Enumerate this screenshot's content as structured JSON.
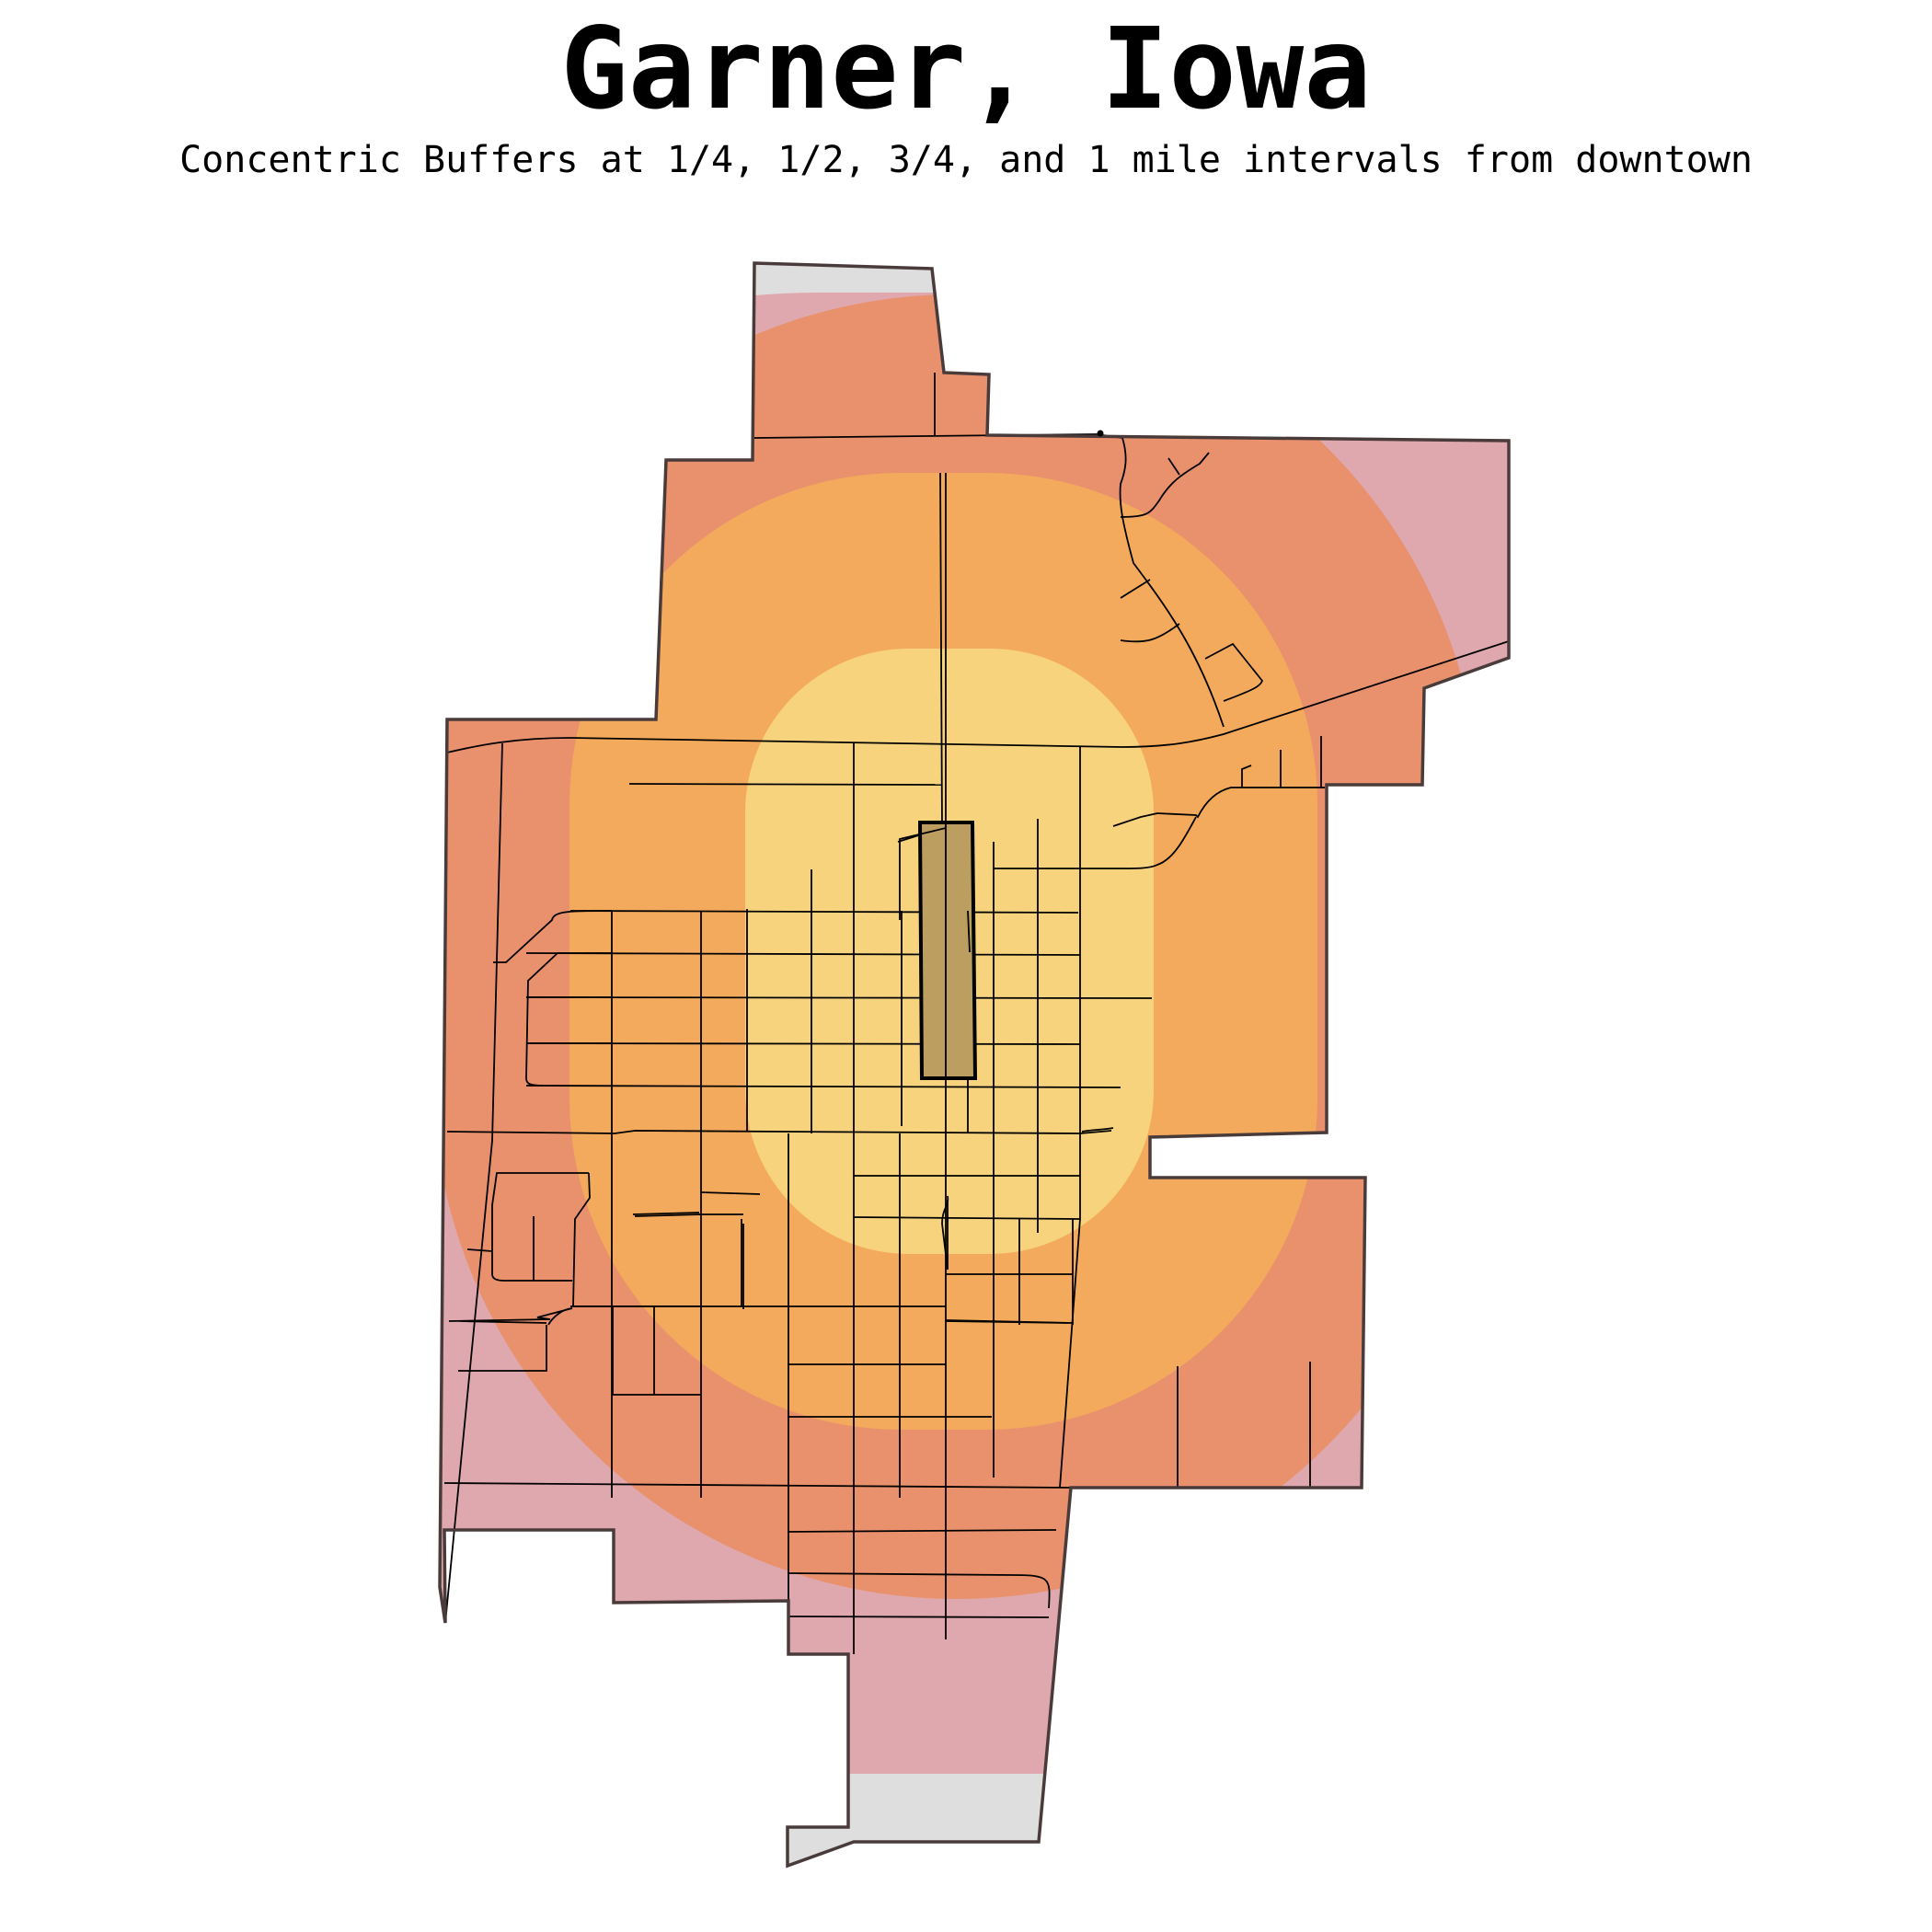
{
  "title": "Garner, Iowa",
  "subtitle": "Concentric Buffers at 1/4, 1/2, 3/4, and 1 mile intervals from downtown",
  "colors": {
    "background": "#ffffff",
    "outside_buffers": "#dedede",
    "buffer_1_mile": "#dfa8ae",
    "buffer_3_4_mile": "#e9916d",
    "buffer_1_2_mile": "#f3aa5c",
    "buffer_1_4_mile": "#f7d37e",
    "downtown": "#bd9e61",
    "boundary_stroke": "#4a3b3b",
    "streets": "#000000"
  },
  "map_layers": [
    "city-boundary",
    "buffer-1-mile",
    "buffer-3-4-mile",
    "buffer-1-2-mile",
    "buffer-1-4-mile",
    "downtown-area",
    "street-network"
  ]
}
